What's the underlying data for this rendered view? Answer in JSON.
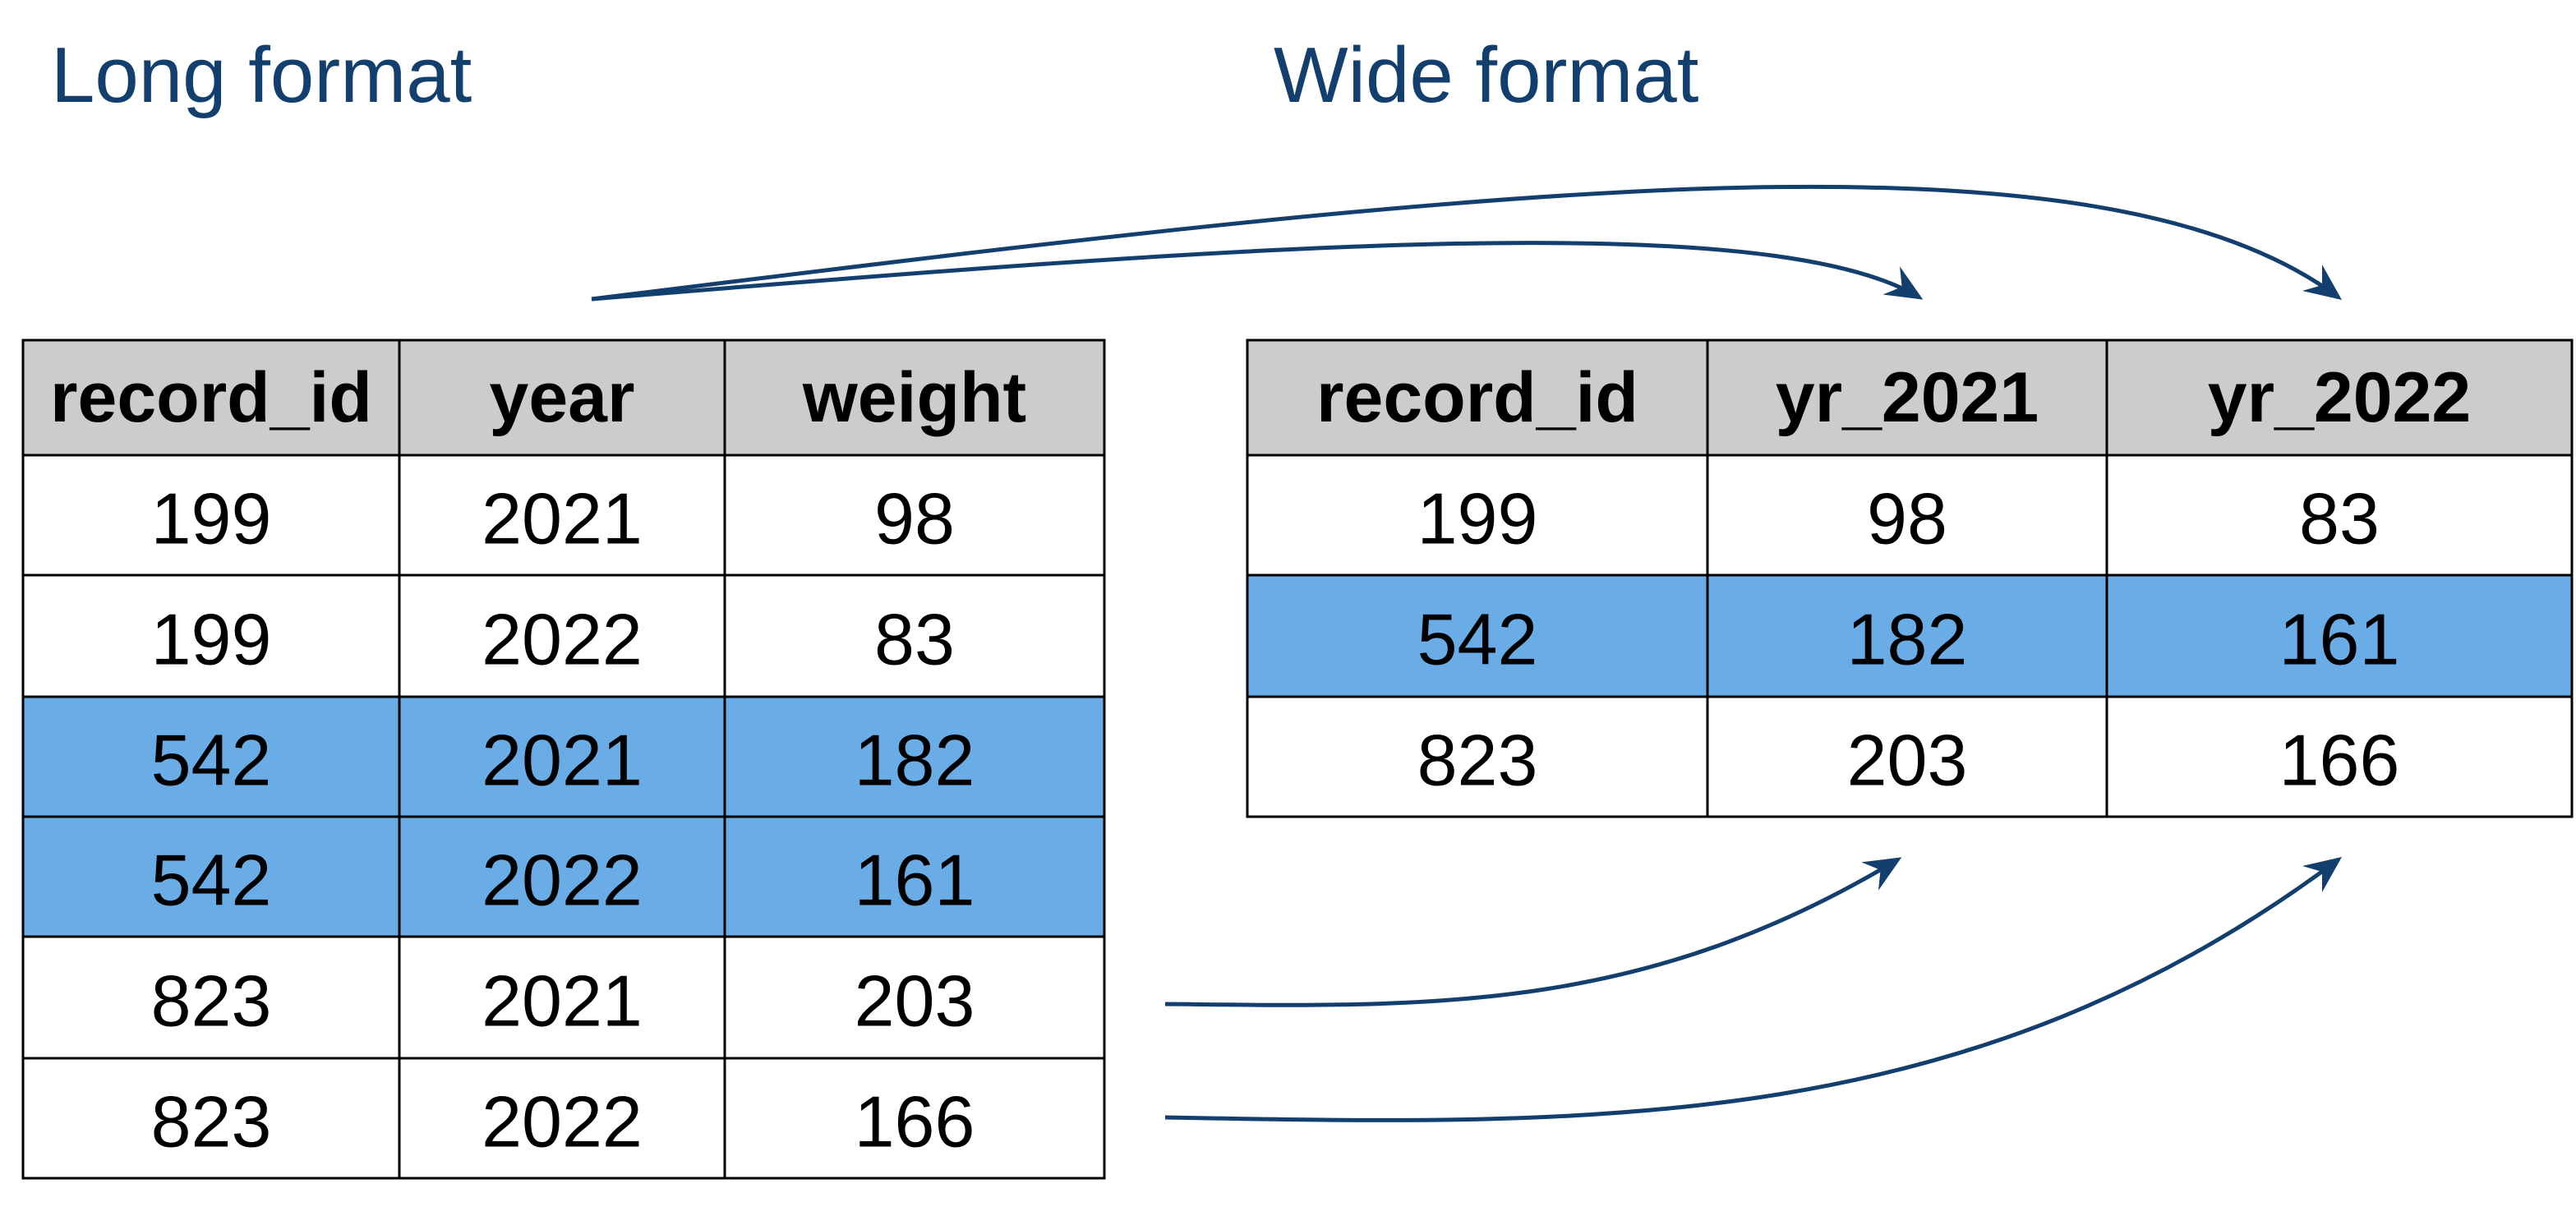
{
  "long": {
    "title": "Long format",
    "columns": [
      "record_id",
      "year",
      "weight"
    ],
    "rows": [
      [
        199,
        2021,
        98
      ],
      [
        199,
        2022,
        83
      ],
      [
        542,
        2021,
        182
      ],
      [
        542,
        2022,
        161
      ],
      [
        823,
        2021,
        203
      ],
      [
        823,
        2022,
        166
      ]
    ],
    "highlight_rows": [
      2,
      3
    ]
  },
  "wide": {
    "title": "Wide format",
    "columns": [
      "record_id",
      "yr_2021",
      "yr_2022"
    ],
    "rows": [
      [
        199,
        98,
        83
      ],
      [
        542,
        182,
        161
      ],
      [
        823,
        203,
        166
      ]
    ],
    "highlight_rows": [
      1
    ]
  },
  "header_color": "#cccccc",
  "highlight_color": "#6aace6"
}
